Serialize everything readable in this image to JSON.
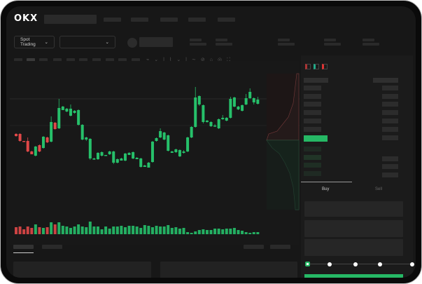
{
  "brand": {
    "name": "OKX"
  },
  "toolbar": {
    "market_selector": "Spot Trading",
    "pair_selector": ""
  },
  "orderbook": {
    "view_icons": [
      "orderbook-both-icon",
      "orderbook-bids-icon",
      "orderbook-asks-icon"
    ]
  },
  "trade": {
    "tabs": [
      "Buy",
      "Sell"
    ],
    "leverage_fraction": 0
  },
  "colors": {
    "up": "#26c06a",
    "down": "#e04848",
    "background": "#171717",
    "accent": "#2bbd67"
  },
  "chart_data": {
    "type": "candlestick",
    "candles": [
      [
        68,
        65,
        69,
        64
      ],
      [
        68,
        58,
        69,
        57
      ],
      [
        58,
        57,
        58,
        57
      ],
      [
        58,
        43,
        63,
        42
      ],
      [
        43,
        39,
        44,
        39
      ],
      [
        37,
        50,
        51,
        36
      ],
      [
        52,
        43,
        53,
        42
      ],
      [
        48,
        64,
        65,
        47
      ],
      [
        63,
        56,
        64,
        55
      ],
      [
        57,
        85,
        93,
        56
      ],
      [
        84,
        75,
        85,
        74
      ],
      [
        76,
        105,
        118,
        75
      ],
      [
        102,
        107,
        108,
        102
      ],
      [
        100,
        104,
        105,
        99
      ],
      [
        94,
        104,
        110,
        93
      ],
      [
        98,
        101,
        102,
        97
      ],
      [
        81,
        102,
        103,
        80
      ],
      [
        60,
        81,
        82,
        59
      ],
      [
        60,
        63,
        64,
        58
      ],
      [
        33,
        61,
        62,
        31
      ],
      [
        32,
        33,
        34,
        31
      ],
      [
        32,
        41,
        42,
        31
      ],
      [
        37,
        42,
        43,
        36
      ],
      [
        37,
        38,
        38,
        37
      ],
      [
        39,
        43,
        44,
        38
      ],
      [
        27,
        43,
        44,
        25
      ],
      [
        27,
        32,
        33,
        26
      ],
      [
        30,
        33,
        34,
        30
      ],
      [
        30,
        40,
        41,
        29
      ],
      [
        38,
        41,
        42,
        38
      ],
      [
        33,
        42,
        43,
        32
      ],
      [
        32,
        34,
        35,
        32
      ],
      [
        21,
        33,
        34,
        20
      ],
      [
        21,
        23,
        24,
        21
      ],
      [
        20,
        27,
        28,
        20
      ],
      [
        28,
        57,
        58,
        27
      ],
      [
        58,
        62,
        63,
        57
      ],
      [
        63,
        72,
        76,
        62
      ],
      [
        60,
        70,
        71,
        59
      ],
      [
        44,
        66,
        67,
        43
      ],
      [
        41,
        43,
        44,
        41
      ],
      [
        42,
        46,
        47,
        41
      ],
      [
        36,
        45,
        46,
        35
      ],
      [
        41,
        43,
        45,
        40
      ],
      [
        43,
        63,
        64,
        42
      ],
      [
        63,
        78,
        79,
        62
      ],
      [
        78,
        120,
        135,
        77
      ],
      [
        110,
        122,
        123,
        108
      ],
      [
        85,
        109,
        110,
        83
      ],
      [
        85,
        87,
        88,
        84
      ],
      [
        79,
        85,
        86,
        78
      ],
      [
        79,
        80,
        82,
        78
      ],
      [
        76,
        89,
        90,
        75
      ],
      [
        89,
        91,
        95,
        88
      ],
      [
        87,
        91,
        92,
        86
      ],
      [
        91,
        118,
        121,
        90
      ],
      [
        107,
        120,
        121,
        106
      ],
      [
        103,
        107,
        108,
        102
      ],
      [
        101,
        109,
        110,
        100
      ],
      [
        110,
        119,
        125,
        109
      ],
      [
        119,
        128,
        133,
        118
      ],
      [
        113,
        119,
        120,
        110
      ],
      [
        111,
        117,
        121,
        110
      ]
    ],
    "volumes": [
      10,
      11,
      7,
      11,
      9,
      14,
      10,
      9,
      10,
      17,
      14,
      17,
      12,
      11,
      9,
      11,
      14,
      11,
      10,
      18,
      11,
      11,
      7,
      11,
      8,
      11,
      11,
      12,
      10,
      12,
      12,
      11,
      9,
      13,
      12,
      10,
      12,
      11,
      11,
      13,
      9,
      10,
      8,
      9,
      3,
      2,
      4,
      6,
      7,
      6,
      6,
      8,
      8,
      7,
      8,
      8,
      9,
      6,
      5,
      3,
      2,
      3,
      3
    ],
    "price_line": true
  }
}
